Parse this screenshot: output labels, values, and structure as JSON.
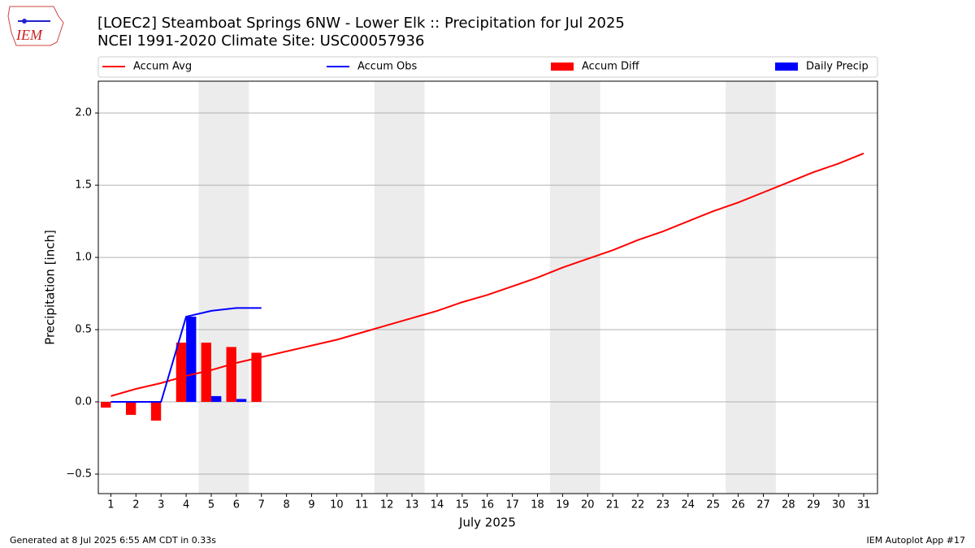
{
  "logo_text": "IEM",
  "chart_data": {
    "type": "combo",
    "title": "[LOEC2] Steamboat Springs 6NW - Lower Elk :: Precipitation for Jul 2025",
    "subtitle": "NCEI 1991-2020 Climate Site: USC00057936",
    "y_label": "Precipitation [inch]",
    "x_label": "July 2025",
    "footer_left": "Generated at 8 Jul 2025 6:55 AM CDT in 0.33s",
    "footer_right": "IEM Autoplot App #17",
    "x": [
      1,
      2,
      3,
      4,
      5,
      6,
      7,
      8,
      9,
      10,
      11,
      12,
      13,
      14,
      15,
      16,
      17,
      18,
      19,
      20,
      21,
      22,
      23,
      24,
      25,
      26,
      27,
      28,
      29,
      30,
      31
    ],
    "xlim": [
      0.5,
      31.55
    ],
    "xticks": [
      1,
      2,
      3,
      4,
      5,
      6,
      7,
      8,
      9,
      10,
      11,
      12,
      13,
      14,
      15,
      16,
      17,
      18,
      19,
      20,
      21,
      22,
      23,
      24,
      25,
      26,
      27,
      28,
      29,
      30,
      31
    ],
    "ylim": [
      -0.635,
      2.22
    ],
    "yticks": [
      {
        "value": -0.5,
        "label": "−0.5"
      },
      {
        "value": 0,
        "label": "0.0"
      },
      0.5,
      {
        "value": 1,
        "label": "1.0"
      },
      1.5,
      {
        "value": 2,
        "label": "2.0"
      }
    ],
    "grid": true,
    "shaded_spans": [
      [
        4.5,
        6.5
      ],
      [
        11.5,
        13.5
      ],
      [
        18.5,
        20.5
      ],
      [
        25.5,
        27.5
      ]
    ],
    "shade_color": "#ececec",
    "legend": "top",
    "bar_width": 0.4,
    "series": [
      {
        "name": "Accum Avg",
        "type": "line",
        "color": "#ff0000",
        "values": [
          0.04,
          0.09,
          0.13,
          0.18,
          0.22,
          0.27,
          0.31,
          0.35,
          0.39,
          0.43,
          0.48,
          0.53,
          0.58,
          0.63,
          0.69,
          0.74,
          0.8,
          0.86,
          0.93,
          0.99,
          1.05,
          1.12,
          1.18,
          1.25,
          1.32,
          1.38,
          1.45,
          1.52,
          1.59,
          1.65,
          1.72
        ]
      },
      {
        "name": "Accum Obs",
        "type": "line",
        "color": "#0000ff",
        "values": [
          0,
          0,
          0,
          0.59,
          0.63,
          0.65,
          0.65,
          null,
          null,
          null,
          null,
          null,
          null,
          null,
          null,
          null,
          null,
          null,
          null,
          null,
          null,
          null,
          null,
          null,
          null,
          null,
          null,
          null,
          null,
          null,
          null
        ]
      },
      {
        "name": "Accum Diff",
        "type": "bar",
        "offset": -0.2,
        "color": "#ff0000",
        "values": [
          -0.04,
          -0.09,
          -0.13,
          0.41,
          0.41,
          0.38,
          0.34,
          null,
          null,
          null,
          null,
          null,
          null,
          null,
          null,
          null,
          null,
          null,
          null,
          null,
          null,
          null,
          null,
          null,
          null,
          null,
          null,
          null,
          null,
          null,
          null
        ]
      },
      {
        "name": "Daily Precip",
        "type": "bar",
        "offset": 0.2,
        "color": "#0000ff",
        "values": [
          0,
          0,
          0,
          0.59,
          0.04,
          0.02,
          0,
          null,
          null,
          null,
          null,
          null,
          null,
          null,
          null,
          null,
          null,
          null,
          null,
          null,
          null,
          null,
          null,
          null,
          null,
          null,
          null,
          null,
          null,
          null,
          null
        ]
      }
    ]
  }
}
